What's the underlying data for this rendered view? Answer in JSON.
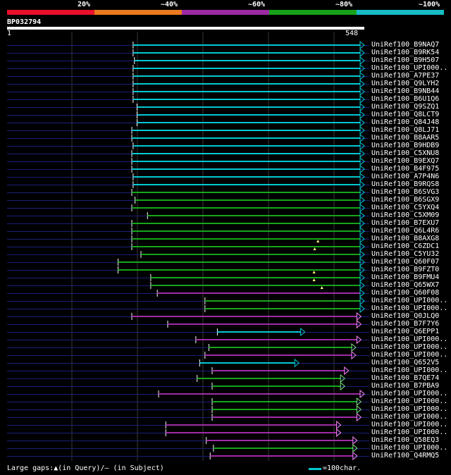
{
  "legend": {
    "segments": [
      {
        "label": "20%",
        "color": "#e8102a"
      },
      {
        "label": "~40%",
        "color": "#ea7a1d"
      },
      {
        "label": "~60%",
        "color": "#9b2aa4"
      },
      {
        "label": "~80%",
        "color": "#17a21a"
      },
      {
        "label": "~100%",
        "color": "#17bcc7"
      }
    ]
  },
  "query": {
    "id": "BP032794",
    "start": "1",
    "end": "548",
    "length": 548
  },
  "hits": [
    {
      "name": "UniRef100_B9NAQ7",
      "start": 194,
      "end": 548,
      "color": "#00c8d2",
      "arrow_color": "#00c8d2",
      "marks": []
    },
    {
      "name": "UniRef100_B9RK54",
      "start": 194,
      "end": 548,
      "color": "#00c8d2",
      "arrow_color": "#00c8d2",
      "marks": []
    },
    {
      "name": "UniRef100_B9H507",
      "start": 196,
      "end": 548,
      "color": "#00c8d2",
      "arrow_color": "#00c8d2",
      "marks": []
    },
    {
      "name": "UniRef100_UPI000..",
      "start": 194,
      "end": 548,
      "color": "#00c8d2",
      "arrow_color": "#00c8d2",
      "marks": []
    },
    {
      "name": "UniRef100_A7PE37",
      "start": 194,
      "end": 548,
      "color": "#00c8d2",
      "arrow_color": "#00c8d2",
      "marks": []
    },
    {
      "name": "UniRef100_Q9LYH2",
      "start": 194,
      "end": 548,
      "color": "#00c8d2",
      "arrow_color": "#00c8d2",
      "marks": []
    },
    {
      "name": "UniRef100_B9NB44",
      "start": 194,
      "end": 548,
      "color": "#00c8d2",
      "arrow_color": "#00c8d2",
      "marks": []
    },
    {
      "name": "UniRef100_B6U1Q6",
      "start": 194,
      "end": 548,
      "color": "#00c8d2",
      "arrow_color": "#00c8d2",
      "marks": []
    },
    {
      "name": "UniRef100_Q9SZQ1",
      "start": 200,
      "end": 548,
      "color": "#00c8d2",
      "arrow_color": "#00c8d2",
      "marks": []
    },
    {
      "name": "UniRef100_Q8LCT9",
      "start": 200,
      "end": 548,
      "color": "#00c8d2",
      "arrow_color": "#00c8d2",
      "marks": []
    },
    {
      "name": "UniRef100_Q84J48",
      "start": 200,
      "end": 548,
      "color": "#00c8d2",
      "arrow_color": "#00c8d2",
      "marks": []
    },
    {
      "name": "UniRef100_Q8LJ71",
      "start": 192,
      "end": 548,
      "color": "#00c8d2",
      "arrow_color": "#00c8d2",
      "marks": []
    },
    {
      "name": "UniRef100_B8AAR5",
      "start": 192,
      "end": 548,
      "color": "#00c8d2",
      "arrow_color": "#00c8d2",
      "marks": []
    },
    {
      "name": "UniRef100_B9HDB9",
      "start": 194,
      "end": 548,
      "color": "#00c8d2",
      "arrow_color": "#00c8d2",
      "marks": []
    },
    {
      "name": "UniRef100_C5XNU8",
      "start": 192,
      "end": 548,
      "color": "#00c8d2",
      "arrow_color": "#00c8d2",
      "marks": []
    },
    {
      "name": "UniRef100_B9EXQ7",
      "start": 192,
      "end": 548,
      "color": "#00c8d2",
      "arrow_color": "#00c8d2",
      "marks": []
    },
    {
      "name": "UniRef100_B4F975",
      "start": 192,
      "end": 548,
      "color": "#00c8d2",
      "arrow_color": "#00c8d2",
      "marks": []
    },
    {
      "name": "UniRef100_A7P4N6",
      "start": 194,
      "end": 548,
      "color": "#00c8d2",
      "arrow_color": "#00c8d2",
      "marks": []
    },
    {
      "name": "UniRef100_B9RQS8",
      "start": 194,
      "end": 548,
      "color": "#00c8d2",
      "arrow_color": "#00c8d2",
      "marks": []
    },
    {
      "name": "UniRef100_B6SVG3",
      "start": 192,
      "end": 548,
      "color": "#16a61a",
      "arrow_color": "#00c8d2",
      "marks": []
    },
    {
      "name": "UniRef100_B6SGX9",
      "start": 197,
      "end": 548,
      "color": "#16a61a",
      "arrow_color": "#00c8d2",
      "marks": []
    },
    {
      "name": "UniRef100_C5YXQ4",
      "start": 192,
      "end": 548,
      "color": "#16a61a",
      "arrow_color": "#00c8d2",
      "marks": []
    },
    {
      "name": "UniRef100_C5XM09",
      "start": 216,
      "end": 548,
      "color": "#16a61a",
      "arrow_color": "#00c8d2",
      "marks": []
    },
    {
      "name": "UniRef100_B7EXU7",
      "start": 192,
      "end": 548,
      "color": "#16a61a",
      "arrow_color": "#00c8d2",
      "marks": []
    },
    {
      "name": "UniRef100_Q6L4R6",
      "start": 192,
      "end": 548,
      "color": "#16a61a",
      "arrow_color": "#00c8d2",
      "marks": []
    },
    {
      "name": "UniRef100_B8AXG8",
      "start": 192,
      "end": 548,
      "color": "#16a61a",
      "arrow_color": "#00c8d2",
      "marks": []
    },
    {
      "name": "UniRef100_C6ZDC1",
      "start": 192,
      "end": 548,
      "color": "#16a61a",
      "arrow_color": "#00c8d2",
      "marks": [
        477
      ]
    },
    {
      "name": "UniRef100_C5YU32",
      "start": 206,
      "end": 548,
      "color": "#16a61a",
      "arrow_color": "#00c8d2",
      "marks": [
        472
      ]
    },
    {
      "name": "UniRef100_Q60F07",
      "start": 171,
      "end": 548,
      "color": "#16a61a",
      "arrow_color": "#00c8d2",
      "marks": []
    },
    {
      "name": "UniRef100_B9FZT0",
      "start": 171,
      "end": 548,
      "color": "#16a61a",
      "arrow_color": "#00c8d2",
      "marks": []
    },
    {
      "name": "UniRef100_B9FMU4",
      "start": 221,
      "end": 548,
      "color": "#16a61a",
      "arrow_color": "#00c8d2",
      "marks": [
        471
      ]
    },
    {
      "name": "UniRef100_Q65WX7",
      "start": 221,
      "end": 548,
      "color": "#16a61a",
      "arrow_color": "#00c8d2",
      "marks": [
        471
      ]
    },
    {
      "name": "UniRef100_Q60F08",
      "start": 231,
      "end": 548,
      "color": "#a02ca8",
      "arrow_color": "#00c8d2",
      "marks": [
        483
      ]
    },
    {
      "name": "UniRef100_UPI000..",
      "start": 304,
      "end": 548,
      "color": "#16a61a",
      "arrow_color": "#00c8d2",
      "marks": []
    },
    {
      "name": "UniRef100_UPI000..",
      "start": 304,
      "end": 548,
      "color": "#16a61a",
      "arrow_color": "#00c8d2",
      "marks": []
    },
    {
      "name": "UniRef100_Q0JLQ0",
      "start": 192,
      "end": 543,
      "color": "#a02ca8",
      "arrow_color": "#ff88ff",
      "marks": []
    },
    {
      "name": "UniRef100_B7F7Y6",
      "start": 247,
      "end": 543,
      "color": "#a02ca8",
      "arrow_color": "#ff88ff",
      "marks": []
    },
    {
      "name": "UniRef100_Q6EPP1",
      "start": 323,
      "end": 457,
      "color": "#00c8d2",
      "arrow_color": "#00c8d2",
      "marks": []
    },
    {
      "name": "UniRef100_UPI000..",
      "start": 290,
      "end": 543,
      "color": "#a02ca8",
      "arrow_color": "#ff88ff",
      "marks": []
    },
    {
      "name": "UniRef100_UPI000..",
      "start": 310,
      "end": 535,
      "color": "#16a61a",
      "arrow_color": "#7ce27c",
      "marks": []
    },
    {
      "name": "UniRef100_UPI000..",
      "start": 304,
      "end": 535,
      "color": "#a02ca8",
      "arrow_color": "#ff88ff",
      "marks": []
    },
    {
      "name": "UniRef100_Q652V5",
      "start": 296,
      "end": 448,
      "color": "#00c8d2",
      "arrow_color": "#00c8d2",
      "marks": []
    },
    {
      "name": "UniRef100_UPI000..",
      "start": 315,
      "end": 524,
      "color": "#a02ca8",
      "arrow_color": "#ff88ff",
      "marks": []
    },
    {
      "name": "UniRef100_B7QE74",
      "start": 292,
      "end": 518,
      "color": "#16a61a",
      "arrow_color": "#7ce27c",
      "marks": []
    },
    {
      "name": "UniRef100_B7PBA9",
      "start": 315,
      "end": 518,
      "color": "#16a61a",
      "arrow_color": "#7ce27c",
      "marks": []
    },
    {
      "name": "UniRef100_UPI000..",
      "start": 233,
      "end": 548,
      "color": "#a02ca8",
      "arrow_color": "#ff88ff",
      "marks": []
    },
    {
      "name": "UniRef100_UPI000..",
      "start": 315,
      "end": 543,
      "color": "#16a61a",
      "arrow_color": "#7ce27c",
      "marks": []
    },
    {
      "name": "UniRef100_UPI000..",
      "start": 315,
      "end": 543,
      "color": "#16a61a",
      "arrow_color": "#7ce27c",
      "marks": []
    },
    {
      "name": "UniRef100_UPI000..",
      "start": 315,
      "end": 543,
      "color": "#a02ca8",
      "arrow_color": "#ff88ff",
      "marks": []
    },
    {
      "name": "UniRef100_UPI000..",
      "start": 244,
      "end": 512,
      "color": "#a02ca8",
      "arrow_color": "#ff88ff",
      "marks": []
    },
    {
      "name": "UniRef100_UPI000..",
      "start": 244,
      "end": 512,
      "color": "#a02ca8",
      "arrow_color": "#ff88ff",
      "marks": []
    },
    {
      "name": "UniRef100_Q58EQ3",
      "start": 306,
      "end": 537,
      "color": "#a02ca8",
      "arrow_color": "#ff88ff",
      "marks": []
    },
    {
      "name": "UniRef100_UPI000..",
      "start": 317,
      "end": 537,
      "color": "#16a61a",
      "arrow_color": "#7ce27c",
      "marks": []
    },
    {
      "name": "UniRef100_Q4RMQ5",
      "start": 312,
      "end": 537,
      "color": "#a02ca8",
      "arrow_color": "#ff88ff",
      "marks": []
    }
  ],
  "colors": {
    "background": "#000000",
    "guide_line": "#1b1f78",
    "grid_line": "#3a3a3a",
    "query_bar": "#ffffff",
    "mark": "#ffff80"
  },
  "footer": {
    "gaps_text": "Large gaps:▲(in Query)/— (in Subject)",
    "scale_text": "=100char.",
    "scale_color": "#00c8d2"
  }
}
